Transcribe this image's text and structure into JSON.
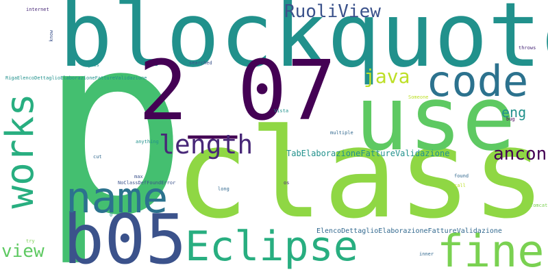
{
  "words": [
    {
      "text": "p",
      "color": "#44bf70"
    },
    {
      "text": "class",
      "color": "#8fd744"
    },
    {
      "text": "blockquote",
      "color": "#21918c"
    },
    {
      "text": "2_07",
      "color": "#440154"
    },
    {
      "text": "use",
      "color": "#5ec962"
    },
    {
      "text": "b05",
      "color": "#3b528b"
    },
    {
      "text": "name",
      "color": "#2c728e"
    },
    {
      "text": "code",
      "color": "#2c728e"
    },
    {
      "text": "fine",
      "color": "#7ad151"
    },
    {
      "text": "Eclipse",
      "color": "#28ae80"
    },
    {
      "text": "works",
      "color": "#28ae80"
    },
    {
      "text": "length",
      "color": "#482878"
    },
    {
      "text": "RuoliView",
      "color": "#3b528b"
    },
    {
      "text": "java",
      "color": "#bddf26"
    },
    {
      "text": "ancona",
      "color": "#440154"
    },
    {
      "text": "eng",
      "color": "#21918c"
    },
    {
      "text": "view",
      "color": "#5ec962"
    },
    {
      "text": "TabElaborazioneFattureValidazione",
      "color": "#21918c"
    },
    {
      "text": "ElencoDettaglioElaborazioneFattureValidazione",
      "color": "#31688e"
    },
    {
      "text": "RigaElencoDettaglioElaborazioneFattureValidazione",
      "color": "#21918c"
    },
    {
      "text": "NoClassDefFoundError",
      "color": "#3b528b"
    },
    {
      "text": "internet",
      "color": "#482878"
    },
    {
      "text": "know",
      "color": "#3b528b"
    },
    {
      "text": "goes",
      "color": "#21918c"
    },
    {
      "text": "searched",
      "color": "#3b528b"
    },
    {
      "text": "anything",
      "color": "#21918c"
    },
    {
      "text": "cut",
      "color": "#31688e"
    },
    {
      "text": "max",
      "color": "#3b528b"
    },
    {
      "text": "long",
      "color": "#31688e"
    },
    {
      "text": "os",
      "color": "#482878"
    },
    {
      "text": "Vista",
      "color": "#21918c"
    },
    {
      "text": "multiple",
      "color": "#31688e"
    },
    {
      "text": "Someone",
      "color": "#bddf26"
    },
    {
      "text": "found",
      "color": "#31688e"
    },
    {
      "text": "call",
      "color": "#bddf26"
    },
    {
      "text": "bug",
      "color": "#440154"
    },
    {
      "text": "throws",
      "color": "#482878"
    },
    {
      "text": "Tomcat",
      "color": "#7ad151"
    },
    {
      "text": "inner",
      "color": "#31688e"
    },
    {
      "text": "try",
      "color": "#7ad151"
    },
    {
      "text": "0",
      "color": "#21918c"
    }
  ]
}
